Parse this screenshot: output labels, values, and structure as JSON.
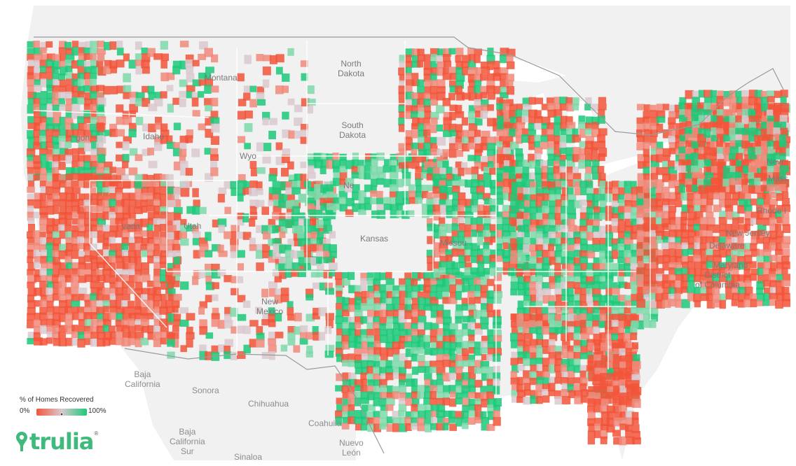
{
  "map": {
    "ocean_color": "#ffffff",
    "land_color": "#f1f1f1",
    "border_color": "#9a9a9a",
    "low_color": "#f2553a",
    "mid_color": "#d9c9cf",
    "high_color": "#1cc979",
    "labels": {
      "north_dakota": "North\nDakota",
      "montana": "Montana",
      "idaho": "Idaho",
      "oregon": "gon",
      "wyoming": "Wyo",
      "south_dakota": "South\nDakota",
      "nebraska": "Ne",
      "utah": "Utah",
      "nevada": "vada",
      "kansas": "Kansas",
      "missouri": "Missou",
      "new_mexico": "New\nMexico",
      "new_hampshire": "New",
      "massachusetts": "Mass",
      "rhode_island": "Rhode I",
      "new_jersey": "New Jersey",
      "delaware": "Delaware",
      "maryland": "Maryland",
      "dc": "District\nof Columbia",
      "baja_california": "Baja\nCalifornia",
      "sonora": "Sonora",
      "chihuahua": "Chihuahua",
      "coahuila": "Coahuila",
      "baja_california_sur": "Baja\nCalifornia\nSur",
      "nuevo_leon": "Nuevo\nLeón",
      "sinaloa": "Sinaloa"
    }
  },
  "legend": {
    "title": "% of Homes Recovered",
    "min_label": "0%",
    "max_label": "100%"
  },
  "brand": {
    "name": "trulia",
    "registered": "®",
    "color": "#3fb97c",
    "pin_icon": "map-pin-icon"
  }
}
